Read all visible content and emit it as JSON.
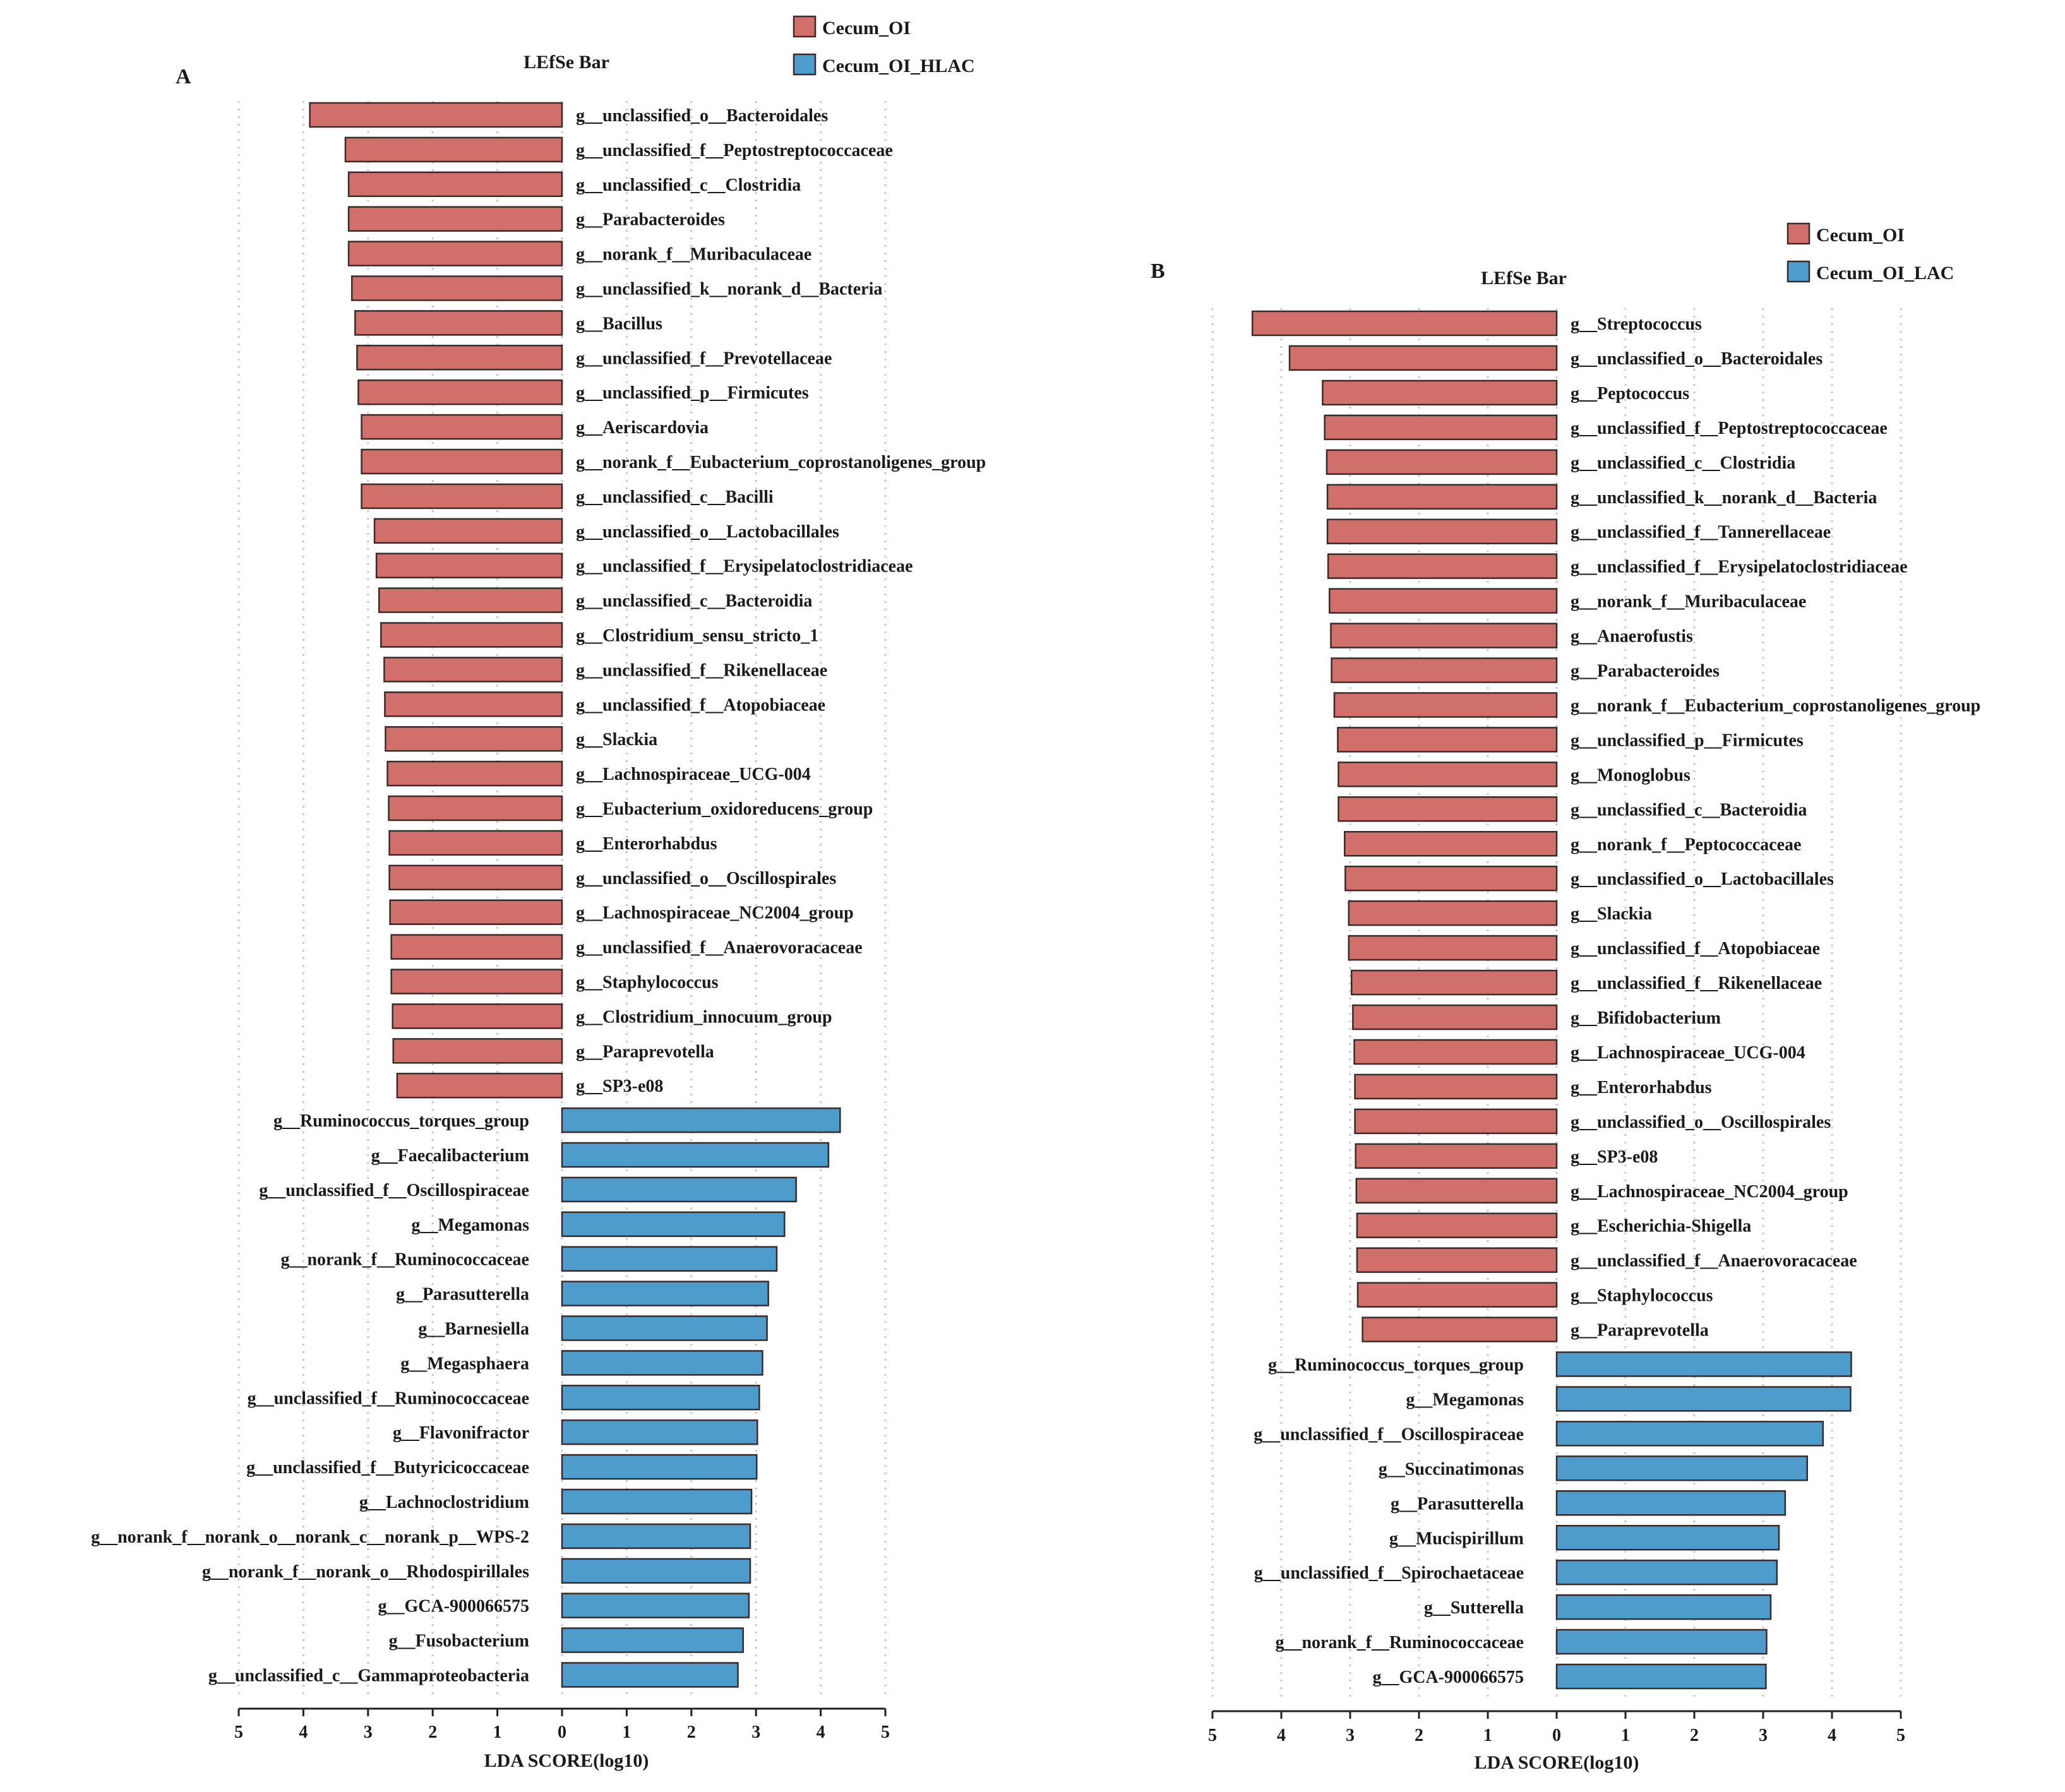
{
  "colors": {
    "ol": "#d1706a",
    "lac": "#4d9ccb"
  },
  "chart_data": [
    {
      "type": "bar",
      "panel": "A",
      "title": "LEfSe Bar",
      "xlabel": "LDA SCORE(log10)",
      "xticks": [
        "5",
        "4",
        "3",
        "2",
        "1",
        "0",
        "1",
        "2",
        "3",
        "4",
        "5"
      ],
      "xlim": [
        -5,
        5
      ],
      "legend": [
        {
          "name": "Cecum_OI",
          "color": "#d1706a"
        },
        {
          "name": "Cecum_OI_HLAC",
          "color": "#4d9ccb"
        }
      ],
      "series": [
        {
          "name": "Cecum_OI",
          "color": "#d1706a",
          "categories": [
            "g__unclassified_o__Bacteroidales",
            "g__unclassified_f__Peptostreptococcaceae",
            "g__unclassified_c__Clostridia",
            "g__Parabacteroides",
            "g__norank_f__Muribaculaceae",
            "g__unclassified_k__norank_d__Bacteria",
            "g__Bacillus",
            "g__unclassified_f__Prevotellaceae",
            "g__unclassified_p__Firmicutes",
            "g__Aeriscardovia",
            "g__norank_f__Eubacterium_coprostanoligenes_group",
            "g__unclassified_c__Bacilli",
            "g__unclassified_o__Lactobacillales",
            "g__unclassified_f__Erysipelatoclostridiaceae",
            "g__unclassified_c__Bacteroidia",
            "g__Clostridium_sensu_stricto_1",
            "g__unclassified_f__Rikenellaceae",
            "g__unclassified_f__Atopobiaceae",
            "g__Slackia",
            "g__Lachnospiraceae_UCG-004",
            "g__Eubacterium_oxidoreducens_group",
            "g__Enterorhabdus",
            "g__unclassified_o__Oscillospirales",
            "g__Lachnospiraceae_NC2004_group",
            "g__unclassified_f__Anaerovoracaceae",
            "g__Staphylococcus",
            "g__Clostridium_innocuum_group",
            "g__Paraprevotella",
            "g__SP3-e08"
          ],
          "values": [
            3.9,
            3.35,
            3.3,
            3.3,
            3.3,
            3.25,
            3.2,
            3.17,
            3.15,
            3.1,
            3.1,
            3.1,
            2.9,
            2.87,
            2.83,
            2.8,
            2.75,
            2.74,
            2.73,
            2.7,
            2.68,
            2.67,
            2.67,
            2.66,
            2.64,
            2.64,
            2.62,
            2.61,
            2.55
          ]
        },
        {
          "name": "Cecum_OI_HLAC",
          "color": "#4d9ccb",
          "categories": [
            "g__Ruminococcus_torques_group",
            "g__Faecalibacterium",
            "g__unclassified_f__Oscillospiraceae",
            "g__Megamonas",
            "g__norank_f__Ruminococcaceae",
            "g__Parasutterella",
            "g__Barnesiella",
            "g__Megasphaera",
            "g__unclassified_f__Ruminococcaceae",
            "g__Flavonifractor",
            "g__unclassified_f__Butyricicoccaceae",
            "g__Lachnoclostridium",
            "g__norank_f__norank_o__norank_c__norank_p__WPS-2",
            "g__norank_f__norank_o__Rhodospirillales",
            "g__GCA-900066575",
            "g__Fusobacterium",
            "g__unclassified_c__Gammaproteobacteria"
          ],
          "values": [
            4.3,
            4.12,
            3.62,
            3.44,
            3.32,
            3.19,
            3.17,
            3.1,
            3.05,
            3.02,
            3.01,
            2.93,
            2.91,
            2.91,
            2.89,
            2.8,
            2.72
          ]
        }
      ]
    },
    {
      "type": "bar",
      "panel": "B",
      "title": "LEfSe Bar",
      "xlabel": "LDA SCORE(log10)",
      "xticks": [
        "5",
        "4",
        "3",
        "2",
        "1",
        "0",
        "1",
        "2",
        "3",
        "4",
        "5"
      ],
      "xlim": [
        -5,
        5
      ],
      "legend": [
        {
          "name": "Cecum_OI",
          "color": "#d1706a"
        },
        {
          "name": "Cecum_OI_LAC",
          "color": "#4d9ccb"
        }
      ],
      "series": [
        {
          "name": "Cecum_OI",
          "color": "#d1706a",
          "categories": [
            "g__Streptococcus",
            "g__unclassified_o__Bacteroidales",
            "g__Peptococcus",
            "g__unclassified_f__Peptostreptococcaceae",
            "g__unclassified_c__Clostridia",
            "g__unclassified_k__norank_d__Bacteria",
            "g__unclassified_f__Tannerellaceae",
            "g__unclassified_f__Erysipelatoclostridiaceae",
            "g__norank_f__Muribaculaceae",
            "g__Anaerofustis",
            "g__Parabacteroides",
            "g__norank_f__Eubacterium_coprostanoligenes_group",
            "g__unclassified_p__Firmicutes",
            "g__Monoglobus",
            "g__unclassified_c__Bacteroidia",
            "g__norank_f__Peptococcaceae",
            "g__unclassified_o__Lactobacillales",
            "g__Slackia",
            "g__unclassified_f__Atopobiaceae",
            "g__unclassified_f__Rikenellaceae",
            "g__Bifidobacterium",
            "g__Lachnospiraceae_UCG-004",
            "g__Enterorhabdus",
            "g__unclassified_o__Oscillospirales",
            "g__SP3-e08",
            "g__Lachnospiraceae_NC2004_group",
            "g__Escherichia-Shigella",
            "g__unclassified_f__Anaerovoracaceae",
            "g__Staphylococcus",
            "g__Paraprevotella"
          ],
          "values": [
            4.42,
            3.88,
            3.4,
            3.37,
            3.34,
            3.33,
            3.33,
            3.32,
            3.3,
            3.28,
            3.27,
            3.23,
            3.18,
            3.17,
            3.17,
            3.08,
            3.07,
            3.02,
            3.02,
            2.98,
            2.96,
            2.94,
            2.93,
            2.93,
            2.92,
            2.91,
            2.9,
            2.9,
            2.89,
            2.82
          ]
        },
        {
          "name": "Cecum_OI_LAC",
          "color": "#4d9ccb",
          "categories": [
            "g__Ruminococcus_torques_group",
            "g__Megamonas",
            "g__unclassified_f__Oscillospiraceae",
            "g__Succinatimonas",
            "g__Parasutterella",
            "g__Mucispirillum",
            "g__unclassified_f__Spirochaetaceae",
            "g__Sutterella",
            "g__norank_f__Ruminococcaceae",
            "g__GCA-900066575"
          ],
          "values": [
            4.28,
            4.27,
            3.87,
            3.64,
            3.32,
            3.23,
            3.2,
            3.11,
            3.05,
            3.04
          ]
        }
      ]
    }
  ]
}
